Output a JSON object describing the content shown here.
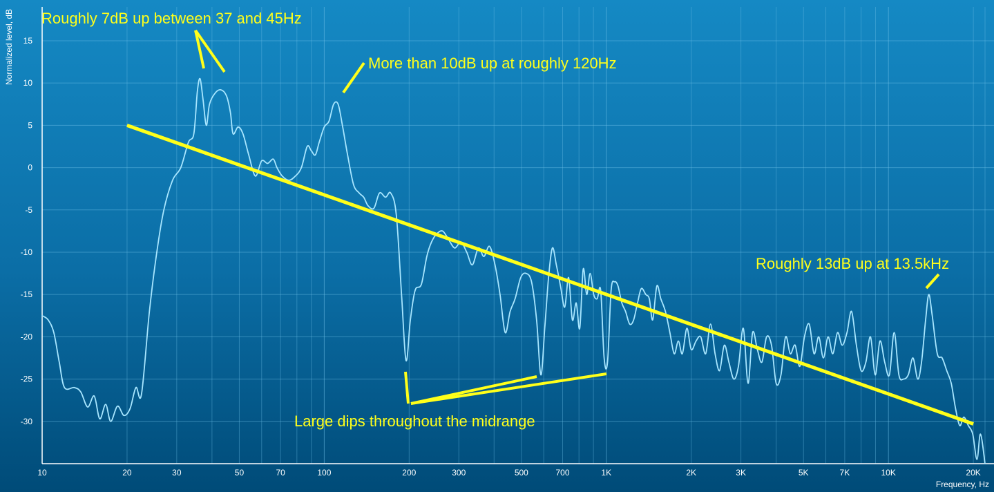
{
  "chart_data": {
    "type": "line",
    "title": "",
    "xlabel": "Frequency, Hz",
    "ylabel": "Normalized level, dB",
    "x_scale": "log",
    "xlim": [
      10,
      22000
    ],
    "ylim": [
      -35,
      19
    ],
    "grid": true,
    "legend": "none",
    "x_tick_labels": [
      {
        "value": 10,
        "label": "10"
      },
      {
        "value": 20,
        "label": "20"
      },
      {
        "value": 30,
        "label": "30"
      },
      {
        "value": 50,
        "label": "50"
      },
      {
        "value": 70,
        "label": "70"
      },
      {
        "value": 100,
        "label": "100"
      },
      {
        "value": 200,
        "label": "200"
      },
      {
        "value": 300,
        "label": "300"
      },
      {
        "value": 500,
        "label": "500"
      },
      {
        "value": 700,
        "label": "700"
      },
      {
        "value": 1000,
        "label": "1K"
      },
      {
        "value": 2000,
        "label": "2K"
      },
      {
        "value": 3000,
        "label": "3K"
      },
      {
        "value": 5000,
        "label": "5K"
      },
      {
        "value": 7000,
        "label": "7K"
      },
      {
        "value": 10000,
        "label": "10K"
      },
      {
        "value": 20000,
        "label": "20K"
      }
    ],
    "y_ticks": [
      15,
      10,
      5,
      0,
      -5,
      -10,
      -15,
      -20,
      -25,
      -30
    ],
    "series": [
      {
        "color": "#a8e6ff",
        "points": [
          [
            10,
            -17.5
          ],
          [
            10.5,
            -18
          ],
          [
            11,
            -19.5
          ],
          [
            11.5,
            -23
          ],
          [
            12,
            -26
          ],
          [
            13,
            -26
          ],
          [
            13.7,
            -26.5
          ],
          [
            14.5,
            -28.3
          ],
          [
            15.3,
            -27
          ],
          [
            16,
            -29.7
          ],
          [
            16.8,
            -28
          ],
          [
            17.5,
            -30
          ],
          [
            18.5,
            -28.2
          ],
          [
            19.5,
            -29.3
          ],
          [
            20.5,
            -28.5
          ],
          [
            21.5,
            -26
          ],
          [
            22.5,
            -26.8
          ],
          [
            24,
            -17
          ],
          [
            25.5,
            -10
          ],
          [
            27,
            -5
          ],
          [
            29,
            -1.5
          ],
          [
            31,
            0
          ],
          [
            33,
            3
          ],
          [
            34.5,
            4
          ],
          [
            35.5,
            9
          ],
          [
            36.3,
            10.5
          ],
          [
            37.2,
            8
          ],
          [
            38.2,
            5
          ],
          [
            39.2,
            7.5
          ],
          [
            41,
            8.8
          ],
          [
            43,
            9.2
          ],
          [
            45,
            8.5
          ],
          [
            46.5,
            6.5
          ],
          [
            47.5,
            4
          ],
          [
            49.5,
            4.8
          ],
          [
            51.5,
            4
          ],
          [
            54,
            1.5
          ],
          [
            57,
            -1
          ],
          [
            60,
            0.8
          ],
          [
            63,
            0.5
          ],
          [
            66,
            1
          ],
          [
            68,
            0
          ],
          [
            71,
            -1
          ],
          [
            75,
            -1.5
          ],
          [
            79,
            -1
          ],
          [
            83,
            0
          ],
          [
            87,
            2.5
          ],
          [
            90,
            2
          ],
          [
            93,
            1.5
          ],
          [
            96,
            3
          ],
          [
            100,
            4.8
          ],
          [
            104,
            5.5
          ],
          [
            108,
            7.5
          ],
          [
            112,
            7.5
          ],
          [
            116,
            5
          ],
          [
            121,
            1.5
          ],
          [
            127,
            -2
          ],
          [
            133,
            -3
          ],
          [
            138,
            -3.5
          ],
          [
            143,
            -4.5
          ],
          [
            150,
            -4.8
          ],
          [
            157,
            -3
          ],
          [
            165,
            -3.5
          ],
          [
            172,
            -3
          ],
          [
            180,
            -5.5
          ],
          [
            188,
            -15
          ],
          [
            195,
            -22.8
          ],
          [
            202,
            -18
          ],
          [
            210,
            -14.5
          ],
          [
            221,
            -13.8
          ],
          [
            231,
            -10.5
          ],
          [
            240,
            -8.8
          ],
          [
            251,
            -7.8
          ],
          [
            263,
            -7.5
          ],
          [
            276,
            -8.5
          ],
          [
            290,
            -9.5
          ],
          [
            305,
            -8.8
          ],
          [
            320,
            -10
          ],
          [
            335,
            -11.5
          ],
          [
            352,
            -9.5
          ],
          [
            368,
            -10.5
          ],
          [
            385,
            -9.3
          ],
          [
            402,
            -11.3
          ],
          [
            420,
            -15
          ],
          [
            438,
            -19.5
          ],
          [
            456,
            -17
          ],
          [
            475,
            -15.5
          ],
          [
            497,
            -13
          ],
          [
            519,
            -12.5
          ],
          [
            543,
            -13.5
          ],
          [
            566,
            -18
          ],
          [
            586,
            -24.5
          ],
          [
            605,
            -19
          ],
          [
            624,
            -13
          ],
          [
            644,
            -9.5
          ],
          [
            665,
            -11.5
          ],
          [
            688,
            -14
          ],
          [
            712,
            -16.5
          ],
          [
            735,
            -13
          ],
          [
            758,
            -18
          ],
          [
            782,
            -16
          ],
          [
            805,
            -19
          ],
          [
            828,
            -12
          ],
          [
            852,
            -15
          ],
          [
            876,
            -12.5
          ],
          [
            902,
            -15
          ],
          [
            928,
            -15.5
          ],
          [
            955,
            -14.5
          ],
          [
            982,
            -22.5
          ],
          [
            1010,
            -23
          ],
          [
            1040,
            -14.5
          ],
          [
            1070,
            -13.5
          ],
          [
            1100,
            -14
          ],
          [
            1135,
            -16
          ],
          [
            1170,
            -17
          ],
          [
            1210,
            -18.5
          ],
          [
            1250,
            -18
          ],
          [
            1290,
            -16
          ],
          [
            1330,
            -14.3
          ],
          [
            1380,
            -15
          ],
          [
            1420,
            -15.5
          ],
          [
            1460,
            -18
          ],
          [
            1510,
            -14
          ],
          [
            1560,
            -15.5
          ],
          [
            1620,
            -17
          ],
          [
            1680,
            -19.5
          ],
          [
            1740,
            -22
          ],
          [
            1800,
            -20.5
          ],
          [
            1860,
            -22
          ],
          [
            1930,
            -19
          ],
          [
            2000,
            -21.5
          ],
          [
            2080,
            -20.5
          ],
          [
            2160,
            -20
          ],
          [
            2250,
            -22
          ],
          [
            2340,
            -18.5
          ],
          [
            2430,
            -22
          ],
          [
            2520,
            -24
          ],
          [
            2620,
            -21
          ],
          [
            2720,
            -23
          ],
          [
            2830,
            -25
          ],
          [
            2940,
            -23.5
          ],
          [
            3060,
            -19
          ],
          [
            3180,
            -25.5
          ],
          [
            3300,
            -19.5
          ],
          [
            3430,
            -21.5
          ],
          [
            3560,
            -23
          ],
          [
            3700,
            -20
          ],
          [
            3850,
            -21
          ],
          [
            4000,
            -25.5
          ],
          [
            4160,
            -24.5
          ],
          [
            4320,
            -20
          ],
          [
            4490,
            -22
          ],
          [
            4670,
            -21
          ],
          [
            4850,
            -23.5
          ],
          [
            5040,
            -20
          ],
          [
            5240,
            -18.5
          ],
          [
            5450,
            -22
          ],
          [
            5660,
            -20
          ],
          [
            5880,
            -22.5
          ],
          [
            6110,
            -20
          ],
          [
            6350,
            -22
          ],
          [
            6600,
            -19.5
          ],
          [
            6860,
            -21
          ],
          [
            7130,
            -19.5
          ],
          [
            7400,
            -17
          ],
          [
            7700,
            -21
          ],
          [
            8000,
            -24
          ],
          [
            8320,
            -23
          ],
          [
            8640,
            -20
          ],
          [
            8980,
            -24.5
          ],
          [
            9330,
            -20.5
          ],
          [
            9700,
            -23
          ],
          [
            10080,
            -24.5
          ],
          [
            10480,
            -19.5
          ],
          [
            10890,
            -24.5
          ],
          [
            11310,
            -25
          ],
          [
            11760,
            -24.5
          ],
          [
            12220,
            -22.5
          ],
          [
            12700,
            -25
          ],
          [
            13100,
            -23
          ],
          [
            13550,
            -18
          ],
          [
            13900,
            -15
          ],
          [
            14300,
            -17.5
          ],
          [
            14900,
            -22
          ],
          [
            15500,
            -22.5
          ],
          [
            16100,
            -24
          ],
          [
            16700,
            -25.5
          ],
          [
            17300,
            -28.5
          ],
          [
            17900,
            -30.5
          ],
          [
            18500,
            -29.5
          ],
          [
            19200,
            -30.5
          ],
          [
            19900,
            -31.5
          ],
          [
            20600,
            -34.5
          ],
          [
            21200,
            -31.5
          ],
          [
            22000,
            -35
          ]
        ]
      }
    ],
    "trend_line": {
      "color": "#ffff1a",
      "from": [
        20,
        5
      ],
      "to": [
        20000,
        -30.3
      ]
    },
    "annotations": [
      {
        "text": "Roughly 7dB up between 37 and 45Hz",
        "color": "#ffff1a"
      },
      {
        "text": "More than 10dB up at roughly 120Hz",
        "color": "#ffff1a"
      },
      {
        "text": "Roughly 13dB up at 13.5kHz",
        "color": "#ffff1a"
      },
      {
        "text": "Large dips throughout the midrange",
        "color": "#ffff1a"
      }
    ]
  },
  "theme": {
    "background_top": "#1589c4",
    "background_bottom": "#004b78",
    "grid_color": "#6fc0e8",
    "axis_color": "#ffffff"
  }
}
